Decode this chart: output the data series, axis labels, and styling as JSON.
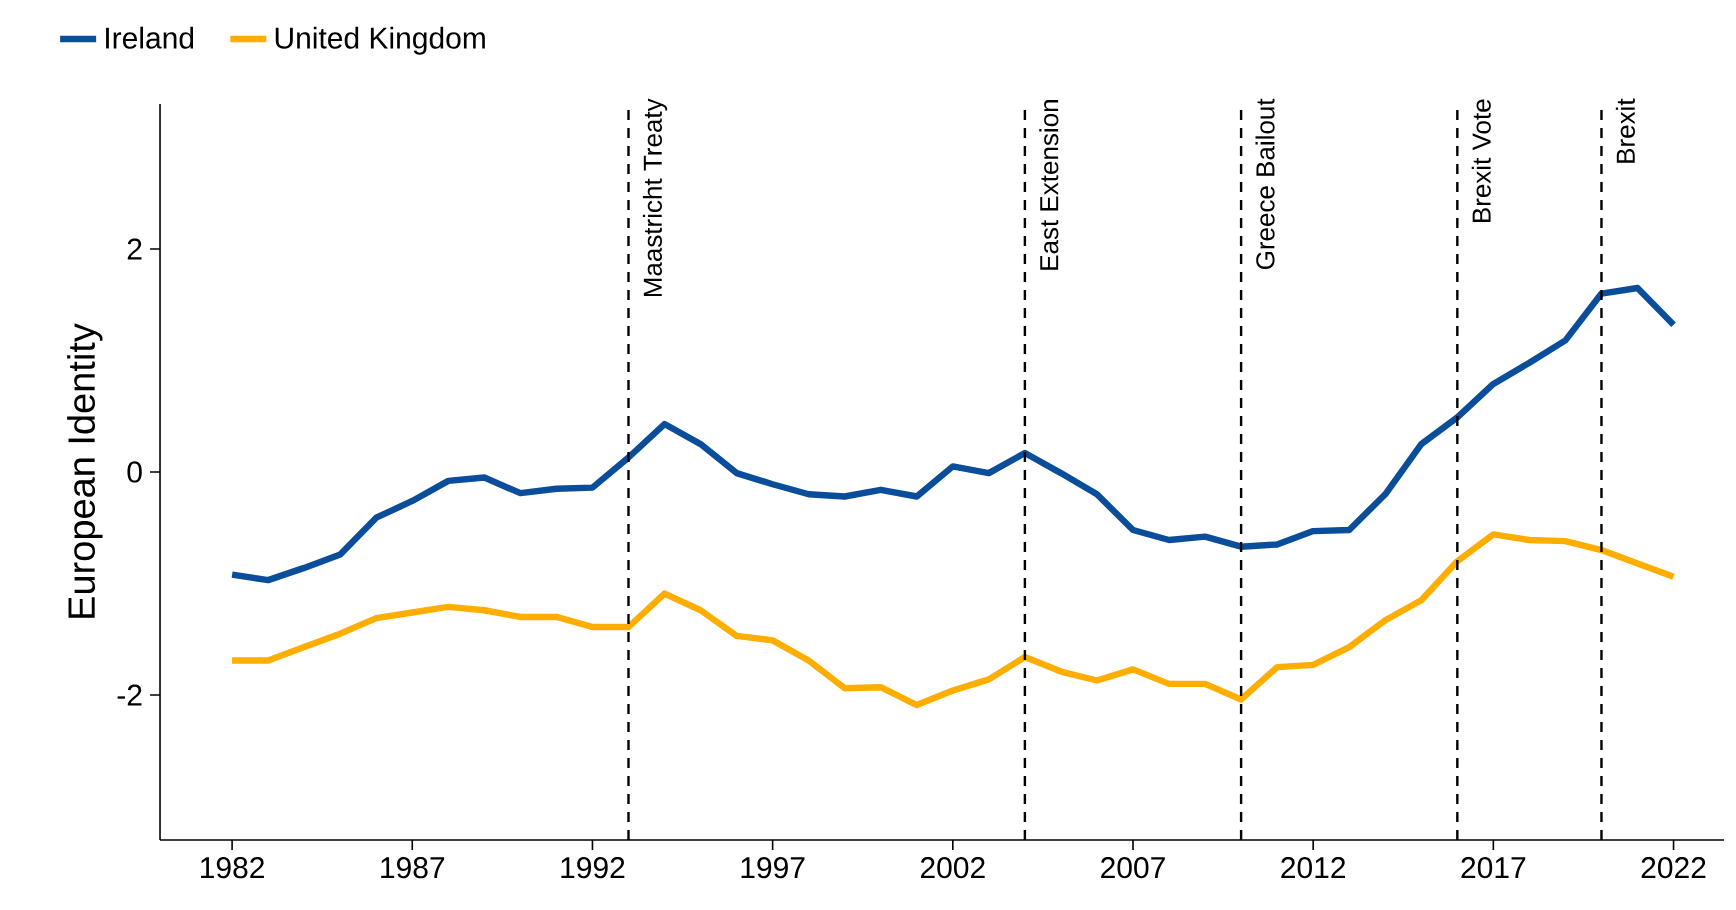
{
  "chart_data": {
    "type": "line",
    "ylabel": "European Identity",
    "x": [
      1982,
      1983,
      1984,
      1985,
      1986,
      1987,
      1988,
      1989,
      1990,
      1991,
      1992,
      1993,
      1994,
      1995,
      1996,
      1997,
      1998,
      1999,
      2000,
      2001,
      2002,
      2003,
      2004,
      2005,
      2006,
      2007,
      2008,
      2009,
      2010,
      2011,
      2012,
      2013,
      2014,
      2015,
      2016,
      2017,
      2018,
      2019,
      2020,
      2021,
      2022
    ],
    "series": [
      {
        "name": "Ireland",
        "color": "#0a4e9b",
        "values": [
          -0.92,
          -0.97,
          -0.86,
          -0.74,
          -0.41,
          -0.26,
          -0.08,
          -0.05,
          -0.19,
          -0.15,
          -0.14,
          0.13,
          0.43,
          0.25,
          -0.01,
          -0.11,
          -0.2,
          -0.22,
          -0.16,
          -0.22,
          0.05,
          -0.01,
          0.17,
          -0.01,
          -0.2,
          -0.52,
          -0.61,
          -0.58,
          -0.67,
          -0.65,
          -0.53,
          -0.52,
          -0.2,
          0.25,
          0.49,
          0.79,
          0.98,
          1.18,
          1.6,
          1.65,
          1.32
        ]
      },
      {
        "name": "United Kingdom",
        "color": "#ffae00",
        "values": [
          -1.69,
          -1.69,
          -1.57,
          -1.45,
          -1.31,
          -1.26,
          -1.21,
          -1.24,
          -1.3,
          -1.3,
          -1.39,
          -1.39,
          -1.09,
          -1.24,
          -1.47,
          -1.51,
          -1.69,
          -1.94,
          -1.93,
          -2.09,
          -1.96,
          -1.86,
          -1.66,
          -1.79,
          -1.87,
          -1.77,
          -1.9,
          -1.9,
          -2.04,
          -1.75,
          -1.73,
          -1.57,
          -1.33,
          -1.15,
          -0.8,
          -0.56,
          -0.61,
          -0.62,
          -0.7,
          -0.82,
          -0.94
        ]
      }
    ],
    "xlim": [
      1980,
      2023.4
    ],
    "ylim": [
      -3.3,
      3.3
    ],
    "xticks": [
      1982,
      1987,
      1992,
      1997,
      2002,
      2007,
      2012,
      2017,
      2022
    ],
    "yticks": [
      -2,
      0,
      2
    ],
    "ref_lines": [
      {
        "axis": "x",
        "value": 1993,
        "label": "Maastricht Treaty",
        "color": "#000000",
        "line_style": "dashed"
      },
      {
        "axis": "x",
        "value": 2004,
        "label": "East Extension",
        "color": "#000000",
        "line_style": "dashed"
      },
      {
        "axis": "x",
        "value": 2010,
        "label": "Greece Bailout",
        "color": "#000000",
        "line_style": "dashed"
      },
      {
        "axis": "x",
        "value": 2016,
        "label": "Brexit Vote",
        "color": "#000000",
        "line_style": "dashed"
      },
      {
        "axis": "x",
        "value": 2020,
        "label": "Brexit",
        "color": "#000000",
        "line_style": "dashed"
      }
    ],
    "legend": "top",
    "grid": false,
    "marker": "none",
    "line_style": "solid"
  }
}
